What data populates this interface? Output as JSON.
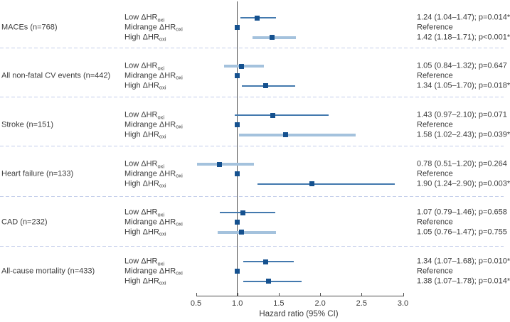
{
  "chart_data": {
    "type": "forest",
    "title": "",
    "xlabel": "Hazard ratio (95% CI)",
    "xlim": [
      0.5,
      3.0
    ],
    "xticks": [
      "0.5",
      "1.0",
      "1.5",
      "2.0",
      "2.5",
      "3.0"
    ],
    "refline": 1.0,
    "colors": {
      "marker": "#15518f",
      "ci_line": "#4379ae",
      "ci_band": "#a4c2dd",
      "axis": "#4d4d4d",
      "refline": "#4d4d4d",
      "separator": "#c3cdea",
      "text": "#3b3b3b"
    },
    "groups": [
      {
        "label": "MACEs (n=768)",
        "rows": [
          {
            "label": "Low ΔHR",
            "sub": "oxi",
            "hr": 1.24,
            "ci": [
              1.04,
              1.47
            ],
            "ci_style": "line",
            "text": "1.24 (1.04–1.47); p=0.014*"
          },
          {
            "label": "Midrange ΔHR",
            "sub": "oxi",
            "hr": 1.0,
            "ci": null,
            "ci_style": null,
            "text": "Reference"
          },
          {
            "label": "High ΔHR",
            "sub": "oxi",
            "hr": 1.42,
            "ci": [
              1.18,
              1.71
            ],
            "ci_style": "band",
            "text": "1.42 (1.18–1.71); p<0.001*"
          }
        ]
      },
      {
        "label": "All non-fatal CV events (n=442)",
        "rows": [
          {
            "label": "Low ΔHR",
            "sub": "oxi",
            "hr": 1.05,
            "ci": [
              0.84,
              1.32
            ],
            "ci_style": "band",
            "text": "1.05 (0.84–1.32); p=0.647"
          },
          {
            "label": "Midrange ΔHR",
            "sub": "oxi",
            "hr": 1.0,
            "ci": null,
            "ci_style": null,
            "text": "Reference"
          },
          {
            "label": "High ΔHR",
            "sub": "oxi",
            "hr": 1.34,
            "ci": [
              1.05,
              1.7
            ],
            "ci_style": "line",
            "text": "1.34 (1.05–1.70); p=0.018*"
          }
        ]
      },
      {
        "label": "Stroke (n=151)",
        "rows": [
          {
            "label": "Low ΔHR",
            "sub": "oxi",
            "hr": 1.43,
            "ci": [
              0.97,
              2.1
            ],
            "ci_style": "line",
            "text": "1.43 (0.97–2.10); p=0.071"
          },
          {
            "label": "Midrange ΔHR",
            "sub": "oxi",
            "hr": 1.0,
            "ci": null,
            "ci_style": null,
            "text": "Reference"
          },
          {
            "label": "High ΔHR",
            "sub": "oxi",
            "hr": 1.58,
            "ci": [
              1.02,
              2.43
            ],
            "ci_style": "band",
            "text": "1.58 (1.02–2.43); p=0.039*"
          }
        ]
      },
      {
        "label": "Heart failure (n=133)",
        "rows": [
          {
            "label": "Low ΔHR",
            "sub": "oxi",
            "hr": 0.78,
            "ci": [
              0.51,
              1.2
            ],
            "ci_style": "band",
            "text": "0.78 (0.51–1.20); p=0.264"
          },
          {
            "label": "Midrange ΔHR",
            "sub": "oxi",
            "hr": 1.0,
            "ci": null,
            "ci_style": null,
            "text": "Reference"
          },
          {
            "label": "High ΔHR",
            "sub": "oxi",
            "hr": 1.9,
            "ci": [
              1.24,
              2.9
            ],
            "ci_style": "line",
            "text": "1.90 (1.24–2.90); p=0.003*"
          }
        ]
      },
      {
        "label": "CAD (n=232)",
        "rows": [
          {
            "label": "Low ΔHR",
            "sub": "oxi",
            "hr": 1.07,
            "ci": [
              0.79,
              1.46
            ],
            "ci_style": "line",
            "text": "1.07 (0.79–1.46); p=0.658"
          },
          {
            "label": "Midrange ΔHR",
            "sub": "oxi",
            "hr": 1.0,
            "ci": null,
            "ci_style": null,
            "text": "Reference"
          },
          {
            "label": "High ΔHR",
            "sub": "oxi",
            "hr": 1.05,
            "ci": [
              0.76,
              1.47
            ],
            "ci_style": "band",
            "text": "1.05 (0.76–1.47); p=0.755"
          }
        ]
      },
      {
        "label": "All-cause mortality (n=433)",
        "rows": [
          {
            "label": "Low ΔHR",
            "sub": "oxi",
            "hr": 1.34,
            "ci": [
              1.07,
              1.68
            ],
            "ci_style": "line",
            "text": "1.34 (1.07–1.68); p=0.010*"
          },
          {
            "label": "Midrange ΔHR",
            "sub": "oxi",
            "hr": 1.0,
            "ci": null,
            "ci_style": null,
            "text": "Reference"
          },
          {
            "label": "High ΔHR",
            "sub": "oxi",
            "hr": 1.38,
            "ci": [
              1.07,
              1.78
            ],
            "ci_style": "line",
            "text": "1.38 (1.07–1.78); p=0.014*"
          }
        ]
      }
    ]
  }
}
